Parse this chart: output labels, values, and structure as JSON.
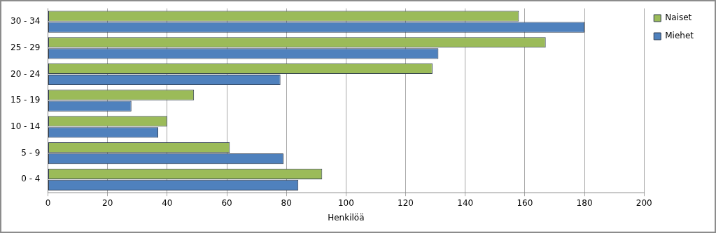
{
  "chart_data": {
    "type": "bar",
    "orientation": "horizontal",
    "xlabel": "Henkilöä",
    "categories": [
      "30 - 34",
      "25 - 29",
      "20 - 24",
      "15 - 19",
      "10 - 14",
      "5 - 9",
      "0 - 4"
    ],
    "series": [
      {
        "name": "Naiset",
        "color": "#9bbb59",
        "values": [
          158,
          167,
          129,
          49,
          40,
          61,
          92
        ]
      },
      {
        "name": "Miehet",
        "color": "#4f81bd",
        "values": [
          180,
          131,
          78,
          28,
          37,
          79,
          84
        ]
      }
    ],
    "xlim": [
      0,
      200
    ],
    "xticks": [
      0,
      20,
      40,
      60,
      80,
      100,
      120,
      140,
      160,
      180,
      200
    ],
    "grid": "x",
    "legend": "right"
  }
}
